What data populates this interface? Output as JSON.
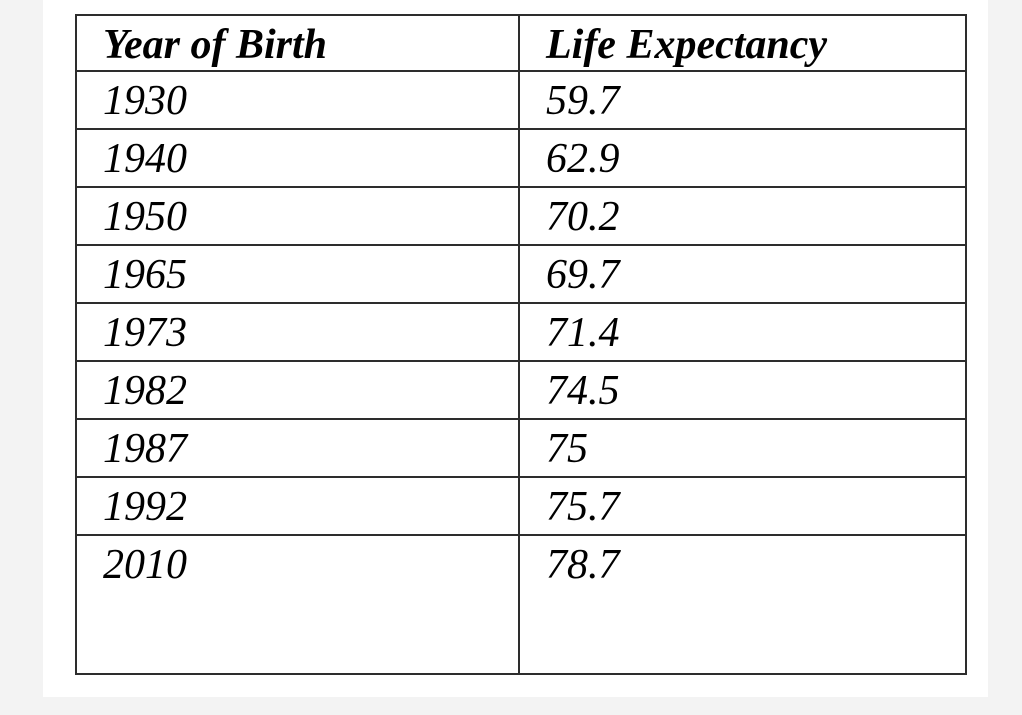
{
  "colors": {
    "page_background": "#ffffff",
    "app_background": "#f3f3f3",
    "table_border": "#2d2d2d",
    "text": "#000000"
  },
  "table": {
    "columns": [
      "Year of Birth",
      "Life Expectancy"
    ],
    "rows": [
      {
        "year": "1930",
        "value": "59.7"
      },
      {
        "year": "1940",
        "value": "62.9"
      },
      {
        "year": "1950",
        "value": "70.2"
      },
      {
        "year": "1965",
        "value": "69.7"
      },
      {
        "year": "1973",
        "value": "71.4"
      },
      {
        "year": "1982",
        "value": "74.5"
      },
      {
        "year": "1987",
        "value": "75"
      },
      {
        "year": "1992",
        "value": "75.7"
      },
      {
        "year": "2010",
        "value": "78.7"
      }
    ]
  },
  "chart_data": {
    "type": "table",
    "title": "",
    "categories": [
      "1930",
      "1940",
      "1950",
      "1965",
      "1973",
      "1982",
      "1987",
      "1992",
      "2010"
    ],
    "values": [
      59.7,
      62.9,
      70.2,
      69.7,
      71.4,
      74.5,
      75,
      75.7,
      78.7
    ],
    "xlabel": "Year of Birth",
    "ylabel": "Life Expectancy"
  }
}
